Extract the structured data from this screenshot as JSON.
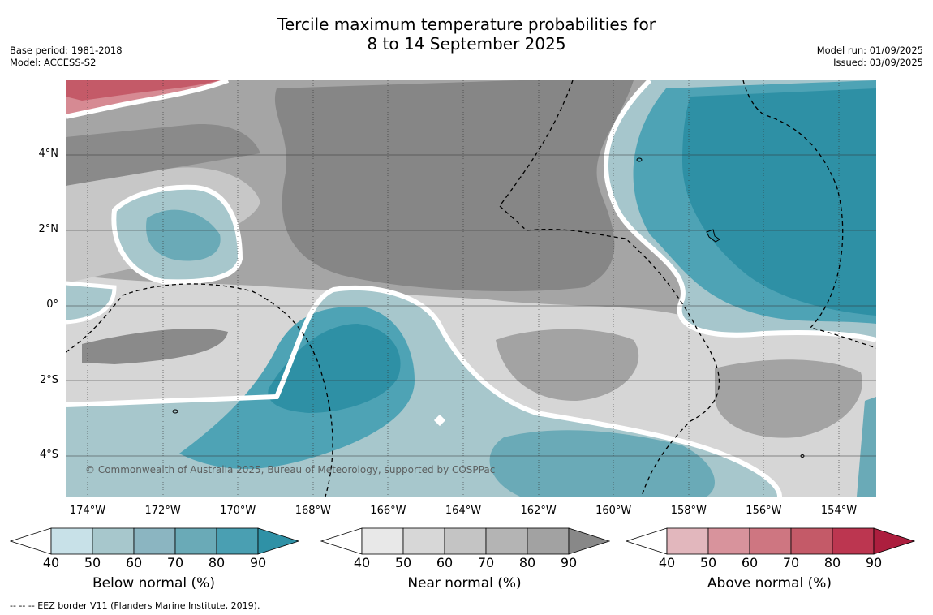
{
  "title_line1": "Tercile maximum temperature probabilities for",
  "title_line2": "8 to 14 September 2025",
  "base_period": "Base period: 1981-2018",
  "model": "Model: ACCESS-S2",
  "model_run": "Model run: 01/09/2025",
  "issued": "Issued: 03/09/2025",
  "copyright": "© Commonwealth of Australia 2025, Bureau of Meteorology, supported by COSPPac",
  "footnote": "--  --  -- EEZ border V11 (Flanders Marine Institute, 2019).",
  "lat_labels": [
    "4°N",
    "2°N",
    "0°",
    "2°S",
    "4°S"
  ],
  "lon_labels": [
    "174°W",
    "172°W",
    "170°W",
    "168°W",
    "166°W",
    "164°W",
    "162°W",
    "160°W",
    "158°W",
    "156°W",
    "154°W"
  ],
  "colorbars": [
    {
      "title": "Below normal (%)",
      "ticks": [
        "40",
        "50",
        "60",
        "70",
        "80",
        "90"
      ],
      "colors": [
        "#c8e1e8",
        "#a7c7cc",
        "#8bb5c1",
        "#6aaab7",
        "#4a9fb2",
        "#2f91a6"
      ]
    },
    {
      "title": "Near normal (%)",
      "ticks": [
        "40",
        "50",
        "60",
        "70",
        "80",
        "90"
      ],
      "colors": [
        "#e8e8e8",
        "#d7d7d7",
        "#c4c4c4",
        "#b4b4b4",
        "#a2a2a2",
        "#888888"
      ]
    },
    {
      "title": "Above normal (%)",
      "ticks": [
        "40",
        "50",
        "60",
        "70",
        "80",
        "90"
      ],
      "colors": [
        "#e2b7bd",
        "#d8939c",
        "#ce7681",
        "#c45a68",
        "#bc3650",
        "#ac1e3e"
      ]
    }
  ],
  "colors": {
    "near_dark": "#868686",
    "near_mid": "#a3a3a3",
    "near_light": "#c7c7c7",
    "near_pale": "#d9d9d9",
    "below_deep": "#2e90a5",
    "below_mid": "#4ea3b5",
    "below_light": "#70aebb",
    "below_pale": "#a6c6cc",
    "above_light": "#d98e98",
    "above_mid": "#c45a68"
  }
}
